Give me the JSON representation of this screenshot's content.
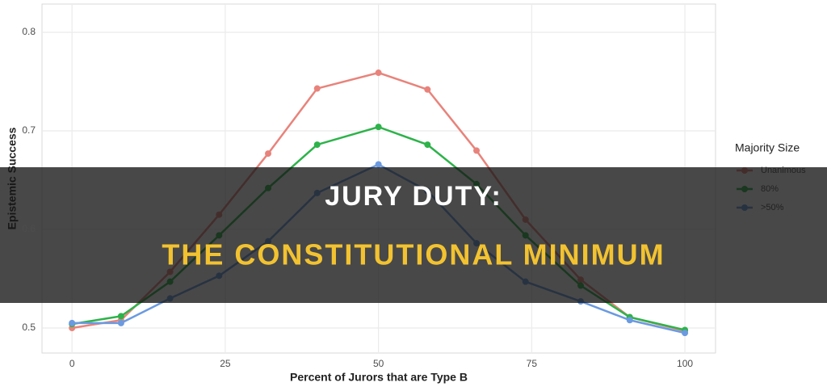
{
  "chart_data": {
    "type": "line",
    "x_label": "Percent of Jurors that are Type B",
    "y_label": "Epistemic Success",
    "legend_title": "Majority Size",
    "legend": "right",
    "grid": true,
    "x": [
      0,
      8,
      16,
      24,
      32,
      40,
      50,
      58,
      66,
      74,
      83,
      91,
      100
    ],
    "series": [
      {
        "name": "Unanimous",
        "color": "#e8837b",
        "values": [
          0.5,
          0.508,
          0.557,
          0.615,
          0.677,
          0.743,
          0.759,
          0.742,
          0.68,
          0.61,
          0.549,
          0.511,
          0.497
        ]
      },
      {
        "name": "80%",
        "color": "#2db34a",
        "values": [
          0.504,
          0.512,
          0.547,
          0.594,
          0.642,
          0.686,
          0.704,
          0.686,
          0.646,
          0.594,
          0.543,
          0.511,
          0.498
        ]
      },
      {
        "name": ">50%",
        "color": "#6b9ae0",
        "values": [
          0.505,
          0.505,
          0.53,
          0.553,
          0.588,
          0.637,
          0.666,
          0.639,
          0.586,
          0.547,
          0.527,
          0.508,
          0.495
        ]
      }
    ],
    "xlim": [
      -4.9,
      105
    ],
    "xticks": [
      0,
      25,
      50,
      75,
      100
    ],
    "ylim": [
      0.4746,
      0.8287
    ],
    "yticks": [
      0.5,
      0.6,
      0.7,
      0.8
    ]
  },
  "banner": {
    "line1": "JURY DUTY:",
    "line2": "THE CONSTITUTIONAL MINIMUM"
  }
}
